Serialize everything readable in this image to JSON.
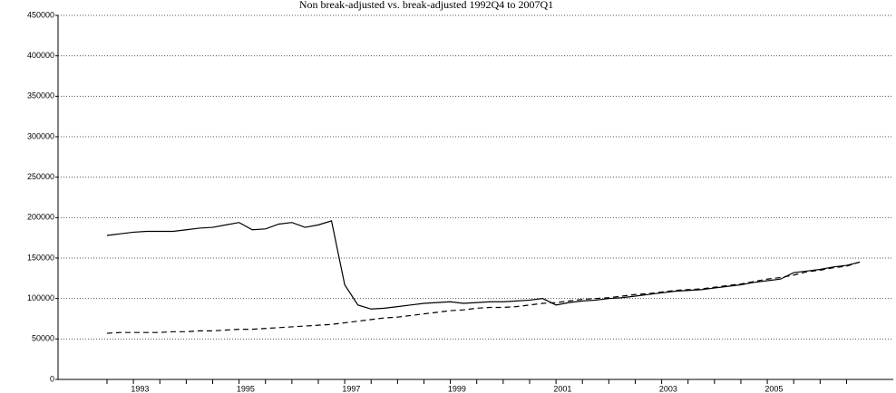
{
  "chart_data": {
    "type": "line",
    "title": "Non break-adjusted vs. break-adjusted 1992Q4 to 2007Q1",
    "categories": [
      null,
      null,
      "1993",
      null,
      null,
      null,
      null,
      null,
      null,
      null,
      "1995",
      null,
      null,
      null,
      null,
      null,
      null,
      null,
      "1997",
      null,
      null,
      null,
      null,
      null,
      null,
      null,
      "1999",
      null,
      null,
      null,
      null,
      null,
      null,
      null,
      "2001",
      null,
      null,
      null,
      null,
      null,
      null,
      null,
      "2003",
      null,
      null,
      null,
      null,
      null,
      null,
      null,
      "2005",
      null,
      null,
      null,
      null,
      null,
      null,
      null
    ],
    "series": [
      {
        "color": "#000000",
        "dashed": false,
        "values": [
          178000,
          180000,
          182000,
          183000,
          183000,
          183000,
          185000,
          187000,
          188000,
          191000,
          194000,
          185000,
          186000,
          192000,
          194000,
          188000,
          191000,
          196000,
          117000,
          92000,
          87000,
          88000,
          90000,
          92000,
          94000,
          95000,
          96000,
          94000,
          95000,
          96000,
          96000,
          97000,
          98000,
          100000,
          92000,
          95000,
          97000,
          98000,
          100000,
          101000,
          103000,
          105000,
          107000,
          109000,
          110000,
          111000,
          113000,
          115000,
          117000,
          120000,
          122000,
          124000,
          132000,
          134000,
          136000,
          139000,
          141000,
          145000
        ]
      },
      {
        "color": "#000000",
        "dashed": true,
        "values": [
          57000,
          58000,
          58000,
          58000,
          58000,
          59000,
          59000,
          60000,
          60000,
          61000,
          62000,
          62000,
          63000,
          64000,
          65000,
          66000,
          67000,
          68000,
          70000,
          72000,
          74000,
          76000,
          77000,
          79000,
          81000,
          83000,
          85000,
          86000,
          88000,
          89000,
          89000,
          90000,
          92000,
          94000,
          95000,
          97000,
          99000,
          100000,
          101000,
          103000,
          105000,
          106000,
          108000,
          110000,
          111000,
          112000,
          114000,
          116000,
          118000,
          121000,
          124000,
          126000,
          129000,
          133000,
          135000,
          138000,
          140000,
          145000
        ]
      }
    ],
    "ylim": [
      0,
      450000
    ],
    "yticks": [
      0,
      50000,
      100000,
      150000,
      200000,
      250000,
      300000,
      350000,
      400000,
      450000
    ],
    "grid": true
  }
}
